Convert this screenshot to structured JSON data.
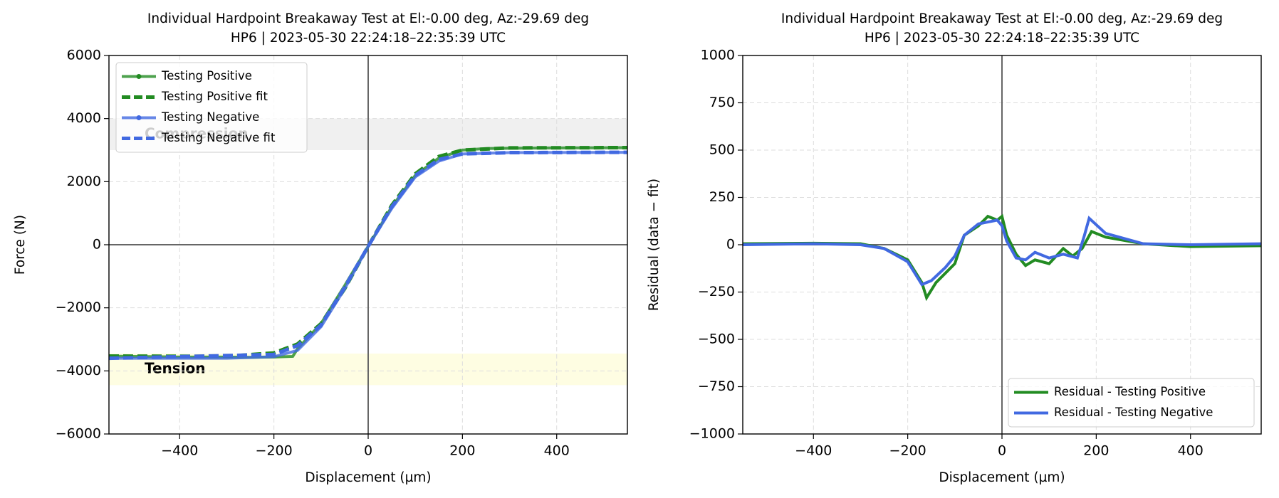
{
  "chart_data": [
    {
      "type": "line",
      "title": "Individual Hardpoint Breakaway Test at El:-0.00 deg, Az:-29.69 deg",
      "subtitle": "HP6 | 2023-05-30 22:24:18–22:35:39 UTC",
      "xlabel": "Displacement (µm)",
      "ylabel": "Force (N)",
      "xlim": [
        -550,
        550
      ],
      "ylim": [
        -6000,
        6000
      ],
      "xticks": [
        {
          "value": -400,
          "label": "−400"
        },
        {
          "value": -200,
          "label": "−200"
        },
        0,
        200,
        400
      ],
      "yticks": [
        {
          "value": -6000,
          "label": "−6000"
        },
        {
          "value": -4000,
          "label": "−4000"
        },
        {
          "value": -2000,
          "label": "−2000"
        },
        0,
        2000,
        4000,
        6000
      ],
      "grid": true,
      "legend": "upper left",
      "bands": [
        {
          "label": "Compression",
          "range": [
            3000,
            4000
          ],
          "color": "#e6e6e6"
        },
        {
          "label": "Tension",
          "range": [
            -4450,
            -3450
          ],
          "color": "#fdfccf"
        }
      ],
      "series": [
        {
          "name": "Testing Positive",
          "color": "#228b22",
          "style": "solid-marker",
          "x": [
            -550,
            -500,
            -450,
            -400,
            -350,
            -300,
            -250,
            -200,
            -160,
            -150,
            -100,
            -50,
            0,
            50,
            100,
            150,
            200,
            250,
            300,
            400,
            550
          ],
          "values": [
            -3530,
            -3540,
            -3550,
            -3560,
            -3560,
            -3560,
            -3570,
            -3560,
            -3540,
            -3300,
            -2500,
            -1300,
            -50,
            1200,
            2200,
            2750,
            3000,
            3050,
            3060,
            3070,
            3080
          ]
        },
        {
          "name": "Testing Positive fit",
          "color": "#228b22",
          "style": "dashed",
          "x": [
            -550,
            -300,
            -200,
            -150,
            -100,
            -50,
            0,
            50,
            100,
            150,
            200,
            300,
            550
          ],
          "values": [
            -3530,
            -3540,
            -3430,
            -3150,
            -2500,
            -1400,
            -50,
            1250,
            2250,
            2800,
            3000,
            3070,
            3080
          ]
        },
        {
          "name": "Testing Negative",
          "color": "#4169e1",
          "style": "solid-marker",
          "x": [
            -550,
            -300,
            -200,
            -150,
            -100,
            -50,
            0,
            50,
            100,
            150,
            200,
            300,
            550
          ],
          "values": [
            -3600,
            -3600,
            -3550,
            -3350,
            -2600,
            -1400,
            -50,
            1150,
            2150,
            2650,
            2880,
            2920,
            2930
          ]
        },
        {
          "name": "Testing Negative fit",
          "color": "#4169e1",
          "style": "dashed",
          "x": [
            -550,
            -200,
            -150,
            -100,
            -50,
            0,
            50,
            100,
            150,
            200,
            300,
            550
          ],
          "values": [
            -3600,
            -3480,
            -3200,
            -2550,
            -1350,
            -50,
            1200,
            2200,
            2700,
            2880,
            2920,
            2930
          ]
        }
      ]
    },
    {
      "type": "line",
      "title": "Individual Hardpoint Breakaway Test at El:-0.00 deg, Az:-29.69 deg",
      "subtitle": "HP6 | 2023-05-30 22:24:18–22:35:39 UTC",
      "xlabel": "Displacement (µm)",
      "ylabel": "Residual (data − fit)",
      "xlim": [
        -550,
        550
      ],
      "ylim": [
        -1000,
        1000
      ],
      "xticks": [
        {
          "value": -400,
          "label": "−400"
        },
        {
          "value": -200,
          "label": "−200"
        },
        0,
        200,
        400
      ],
      "yticks": [
        {
          "value": -1000,
          "label": "−1000"
        },
        {
          "value": -750,
          "label": "−750"
        },
        {
          "value": -500,
          "label": "−500"
        },
        {
          "value": -250,
          "label": "−250"
        },
        0,
        250,
        500,
        750,
        1000
      ],
      "grid": true,
      "legend": "lower right",
      "series": [
        {
          "name": "Residual - Testing Positive",
          "color": "#228b22",
          "style": "solid",
          "x": [
            -550,
            -400,
            -300,
            -250,
            -200,
            -170,
            -160,
            -140,
            -100,
            -80,
            -50,
            -30,
            -10,
            0,
            10,
            30,
            50,
            70,
            100,
            130,
            150,
            170,
            190,
            220,
            300,
            400,
            550
          ],
          "values": [
            5,
            8,
            5,
            -20,
            -80,
            -200,
            -280,
            -200,
            -100,
            50,
            100,
            150,
            130,
            150,
            50,
            -50,
            -110,
            -80,
            -100,
            -20,
            -60,
            -20,
            70,
            40,
            5,
            -10,
            -5
          ]
        },
        {
          "name": "Residual - Testing Negative",
          "color": "#4169e1",
          "style": "solid",
          "x": [
            -550,
            -400,
            -300,
            -250,
            -200,
            -170,
            -150,
            -120,
            -100,
            -80,
            -50,
            -30,
            -10,
            0,
            10,
            30,
            50,
            70,
            100,
            130,
            160,
            175,
            185,
            220,
            300,
            400,
            550
          ],
          "values": [
            0,
            5,
            0,
            -20,
            -90,
            -210,
            -190,
            -120,
            -60,
            50,
            110,
            120,
            130,
            100,
            20,
            -70,
            -80,
            -40,
            -70,
            -50,
            -70,
            50,
            140,
            60,
            5,
            0,
            5
          ]
        }
      ]
    }
  ]
}
